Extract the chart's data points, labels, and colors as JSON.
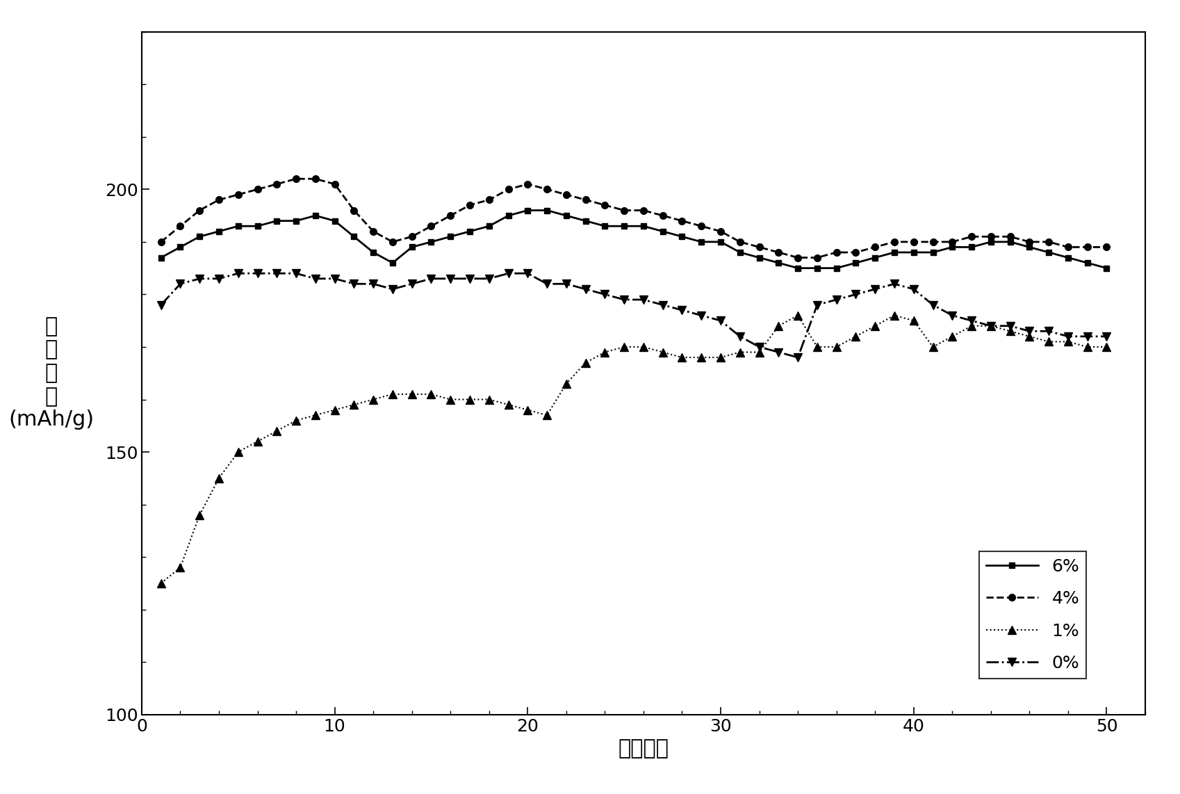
{
  "title": "",
  "xlabel": "循环次数",
  "ylabel_lines": [
    "放",
    "电",
    "容",
    "量",
    "(mAh/g)"
  ],
  "xlim": [
    0,
    52
  ],
  "ylim": [
    100,
    230
  ],
  "xticks": [
    0,
    10,
    20,
    30,
    40,
    50
  ],
  "yticks": [
    100,
    150,
    200
  ],
  "background_color": "#ffffff",
  "series_6pct": {
    "label": "6%",
    "x": [
      1,
      2,
      3,
      4,
      5,
      6,
      7,
      8,
      9,
      10,
      11,
      12,
      13,
      14,
      15,
      16,
      17,
      18,
      19,
      20,
      21,
      22,
      23,
      24,
      25,
      26,
      27,
      28,
      29,
      30,
      31,
      32,
      33,
      34,
      35,
      36,
      37,
      38,
      39,
      40,
      41,
      42,
      43,
      44,
      45,
      46,
      47,
      48,
      49,
      50
    ],
    "y": [
      187,
      189,
      191,
      192,
      193,
      193,
      194,
      194,
      195,
      194,
      191,
      188,
      186,
      189,
      190,
      191,
      192,
      193,
      195,
      196,
      196,
      195,
      194,
      193,
      193,
      193,
      192,
      191,
      190,
      190,
      188,
      187,
      186,
      185,
      185,
      185,
      186,
      187,
      188,
      188,
      188,
      189,
      189,
      190,
      190,
      189,
      188,
      187,
      186,
      185
    ],
    "marker": "s",
    "linestyle": "-",
    "color": "#000000",
    "markersize": 6,
    "linewidth": 2.0
  },
  "series_4pct": {
    "label": "4%",
    "x": [
      1,
      2,
      3,
      4,
      5,
      6,
      7,
      8,
      9,
      10,
      11,
      12,
      13,
      14,
      15,
      16,
      17,
      18,
      19,
      20,
      21,
      22,
      23,
      24,
      25,
      26,
      27,
      28,
      29,
      30,
      31,
      32,
      33,
      34,
      35,
      36,
      37,
      38,
      39,
      40,
      41,
      42,
      43,
      44,
      45,
      46,
      47,
      48,
      49,
      50
    ],
    "y": [
      190,
      193,
      196,
      198,
      199,
      200,
      201,
      202,
      202,
      201,
      196,
      192,
      190,
      191,
      193,
      195,
      197,
      198,
      200,
      201,
      200,
      199,
      198,
      197,
      196,
      196,
      195,
      194,
      193,
      192,
      190,
      189,
      188,
      187,
      187,
      188,
      188,
      189,
      190,
      190,
      190,
      190,
      191,
      191,
      191,
      190,
      190,
      189,
      189,
      189
    ],
    "marker": "o",
    "linestyle": "--",
    "color": "#000000",
    "markersize": 7,
    "linewidth": 2.0
  },
  "series_1pct": {
    "label": "1%",
    "x": [
      1,
      2,
      3,
      4,
      5,
      6,
      7,
      8,
      9,
      10,
      11,
      12,
      13,
      14,
      15,
      16,
      17,
      18,
      19,
      20,
      21,
      22,
      23,
      24,
      25,
      26,
      27,
      28,
      29,
      30,
      31,
      32,
      33,
      34,
      35,
      36,
      37,
      38,
      39,
      40,
      41,
      42,
      43,
      44,
      45,
      46,
      47,
      48,
      49,
      50
    ],
    "y": [
      125,
      128,
      138,
      145,
      150,
      152,
      154,
      156,
      157,
      158,
      159,
      160,
      161,
      161,
      161,
      160,
      160,
      160,
      159,
      158,
      157,
      163,
      167,
      169,
      170,
      170,
      169,
      168,
      168,
      168,
      169,
      169,
      174,
      176,
      170,
      170,
      172,
      174,
      176,
      175,
      170,
      172,
      174,
      174,
      173,
      172,
      171,
      171,
      170,
      170
    ],
    "marker": "^",
    "linestyle": ":",
    "color": "#000000",
    "markersize": 8,
    "linewidth": 1.5
  },
  "series_0pct": {
    "label": "0%",
    "x": [
      1,
      2,
      3,
      4,
      5,
      6,
      7,
      8,
      9,
      10,
      11,
      12,
      13,
      14,
      15,
      16,
      17,
      18,
      19,
      20,
      21,
      22,
      23,
      24,
      25,
      26,
      27,
      28,
      29,
      30,
      31,
      32,
      33,
      34,
      35,
      36,
      37,
      38,
      39,
      40,
      41,
      42,
      43,
      44,
      45,
      46,
      47,
      48,
      49,
      50
    ],
    "y": [
      178,
      182,
      183,
      183,
      184,
      184,
      184,
      184,
      183,
      183,
      182,
      182,
      181,
      182,
      183,
      183,
      183,
      183,
      184,
      184,
      182,
      182,
      181,
      180,
      179,
      179,
      178,
      177,
      176,
      175,
      172,
      170,
      169,
      168,
      178,
      179,
      180,
      181,
      182,
      181,
      178,
      176,
      175,
      174,
      174,
      173,
      173,
      172,
      172,
      172
    ],
    "marker": "v",
    "linestyle": "-.",
    "color": "#000000",
    "markersize": 8,
    "linewidth": 2.0
  },
  "ylabel_fontsize": 22,
  "xlabel_fontsize": 22,
  "tick_fontsize": 18,
  "legend_fontsize": 18
}
